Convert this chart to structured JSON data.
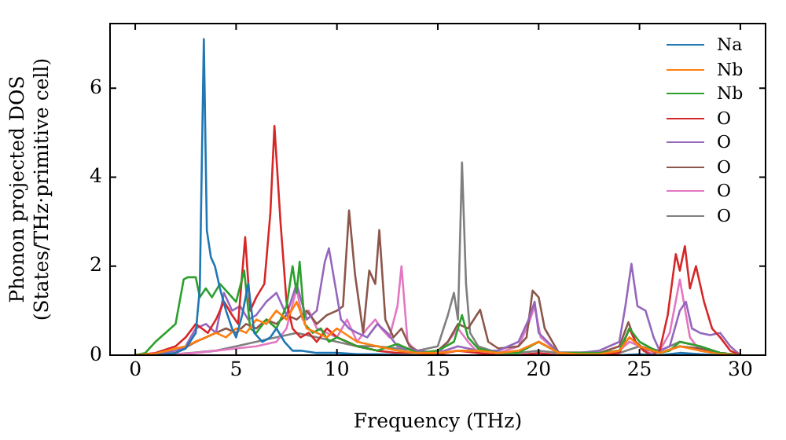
{
  "chart_data": {
    "type": "line",
    "xlabel": "Frequency (THz)",
    "ylabel": "Phonon projected DOS\n(States/THz·primitive cell)",
    "xlim": [
      -1.25,
      31.25
    ],
    "xticks": [
      0,
      5,
      10,
      15,
      20,
      25,
      30
    ],
    "ylim": [
      0,
      7.45
    ],
    "yticks": [
      0,
      2,
      4,
      6
    ],
    "grid": false,
    "legend": "top right",
    "marker": "none",
    "line_style": "solid",
    "series": [
      {
        "name": "Na",
        "color": "#1f77b4",
        "x": [
          1,
          2,
          2.5,
          3,
          3.2,
          3.4,
          3.55,
          3.75,
          3.95,
          4.2,
          4.5,
          4.8,
          5.0,
          5.3,
          5.6,
          5.9,
          6.3,
          6.7,
          7.0,
          7.4,
          7.8,
          8.2,
          9,
          10,
          11,
          12,
          14,
          16,
          18,
          20,
          22,
          24,
          25,
          26,
          27,
          28,
          29
        ],
        "values": [
          0,
          0.05,
          0.15,
          0.5,
          1.5,
          7.1,
          2.8,
          2.2,
          2.0,
          1.5,
          1.0,
          0.6,
          0.4,
          0.9,
          1.6,
          0.5,
          0.3,
          0.4,
          0.6,
          0.3,
          0.1,
          0.1,
          0.05,
          0.05,
          0.02,
          0.02,
          0,
          null,
          null,
          null,
          null,
          0,
          0.02,
          0,
          0.05,
          0.02,
          0
        ]
      },
      {
        "name": "Nb",
        "color": "#ff7f0e",
        "x": [
          0,
          1,
          2,
          2.5,
          3,
          3.5,
          4,
          4.5,
          5,
          5.5,
          6,
          6.5,
          7,
          7.5,
          8,
          8.5,
          9,
          9.5,
          10,
          11,
          12,
          13,
          14,
          15,
          16,
          17,
          18,
          19,
          20,
          21,
          22,
          23,
          24,
          24.5,
          25,
          26,
          27,
          27.5,
          28,
          29,
          30
        ],
        "values": [
          0,
          0.03,
          0.15,
          0.2,
          0.3,
          0.4,
          0.5,
          0.4,
          0.6,
          0.5,
          0.8,
          0.7,
          1.0,
          0.8,
          1.2,
          0.6,
          0.5,
          0.4,
          0.6,
          0.3,
          0.2,
          0.1,
          0.05,
          0.05,
          0.1,
          0.1,
          0.05,
          0.1,
          0.3,
          0.05,
          0.02,
          0.02,
          0.1,
          0.4,
          0.2,
          0.05,
          0.2,
          0.15,
          0.1,
          0.02,
          0
        ]
      },
      {
        "name": "Nb",
        "color": "#2ca02c",
        "x": [
          0,
          0.5,
          1,
          1.5,
          2,
          2.4,
          2.6,
          3.0,
          3.2,
          3.5,
          3.8,
          4.2,
          4.6,
          5.0,
          5.4,
          5.7,
          6.0,
          6.5,
          7.0,
          7.5,
          7.8,
          8.0,
          8.15,
          8.4,
          8.8,
          9.2,
          9.6,
          10,
          11,
          12,
          13,
          14,
          15,
          15.8,
          16.2,
          16.5,
          17,
          18,
          19,
          20,
          21,
          22,
          23,
          24,
          24.5,
          25,
          26,
          26.5,
          27,
          27.5,
          28,
          29,
          30
        ],
        "values": [
          0,
          0.05,
          0.3,
          0.5,
          0.7,
          1.7,
          1.75,
          1.75,
          1.3,
          1.5,
          1.3,
          1.6,
          1.4,
          1.2,
          1.9,
          0.6,
          0.5,
          0.8,
          0.6,
          1.1,
          2.0,
          1.4,
          2.1,
          0.7,
          0.5,
          0.6,
          0.3,
          0.4,
          0.2,
          0.1,
          0.25,
          0.05,
          0.1,
          0.3,
          0.9,
          0.4,
          0.15,
          0.05,
          0.05,
          0.3,
          0.05,
          0.05,
          0.05,
          0.1,
          0.6,
          0.3,
          0.05,
          0.1,
          0.3,
          0.25,
          0.2,
          0.05,
          0
        ]
      },
      {
        "name": "O",
        "color": "#d62728",
        "x": [
          0,
          1,
          2,
          2.5,
          3,
          3.3,
          3.6,
          4,
          4.4,
          4.8,
          5.1,
          5.45,
          5.7,
          6.0,
          6.4,
          6.7,
          6.9,
          7.2,
          7.5,
          7.8,
          8.2,
          8.6,
          9,
          9.5,
          10,
          10.5,
          11,
          12,
          13,
          14,
          15,
          16,
          17,
          18,
          19,
          20,
          21,
          22,
          23,
          24,
          24.5,
          24.8,
          25.2,
          25.6,
          26,
          26.4,
          26.8,
          27.0,
          27.25,
          27.5,
          27.8,
          28.2,
          28.6,
          29,
          29.5,
          30
        ],
        "values": [
          0,
          0.05,
          0.2,
          0.4,
          0.7,
          0.6,
          0.5,
          0.8,
          1.2,
          0.9,
          0.7,
          2.65,
          1.0,
          1.3,
          1.6,
          3.2,
          5.15,
          3.0,
          1.2,
          0.6,
          0.4,
          0.5,
          0.3,
          0.6,
          0.4,
          0.3,
          0.2,
          0.1,
          0.05,
          0.05,
          0.02,
          0.1,
          0.05,
          0,
          0,
          0.05,
          0,
          0,
          0,
          0.05,
          0.6,
          0.3,
          0.1,
          0,
          0.1,
          0.9,
          2.27,
          1.9,
          2.45,
          1.5,
          2.0,
          1.2,
          0.6,
          0.4,
          0.1,
          0
        ]
      },
      {
        "name": "O",
        "color": "#9467bd",
        "x": [
          0,
          1,
          2,
          2.5,
          3,
          3.5,
          4,
          4.4,
          4.8,
          5.2,
          5.6,
          6.0,
          6.5,
          7.0,
          7.5,
          8.0,
          8.5,
          9.0,
          9.4,
          9.6,
          9.9,
          10.2,
          10.6,
          11,
          11.5,
          12,
          12.5,
          13,
          14,
          15,
          16,
          17,
          18,
          19,
          19.5,
          19.8,
          20,
          21,
          22,
          23,
          24,
          24.3,
          24.6,
          24.9,
          25.3,
          25.7,
          26,
          26.5,
          27,
          27.3,
          27.6,
          28,
          28.5,
          29,
          29.5,
          30
        ],
        "values": [
          0,
          0.02,
          0.1,
          0.2,
          0.6,
          0.7,
          0.5,
          1.4,
          1.0,
          1.1,
          0.8,
          0.9,
          1.2,
          1.4,
          0.9,
          1.6,
          0.8,
          1.0,
          2.1,
          2.4,
          1.6,
          0.8,
          0.6,
          0.5,
          0.4,
          0.7,
          0.5,
          0.2,
          0.1,
          0.05,
          0.2,
          0.1,
          0.1,
          0.3,
          0.8,
          1.2,
          0.5,
          0.05,
          0.05,
          0.1,
          0.3,
          1.1,
          2.05,
          1.1,
          1.0,
          0.4,
          0.1,
          0.2,
          1.0,
          1.2,
          0.6,
          0.5,
          0.45,
          0.5,
          0.2,
          0
        ]
      },
      {
        "name": "O",
        "color": "#8c564b",
        "x": [
          0,
          1,
          2,
          3,
          3.5,
          4,
          4.5,
          5,
          5.5,
          6,
          6.5,
          7,
          7.5,
          8,
          8.5,
          9,
          9.5,
          10,
          10.3,
          10.6,
          10.9,
          11.3,
          11.6,
          11.9,
          12.1,
          12.4,
          12.8,
          13.2,
          13.6,
          14,
          14.5,
          15,
          15.5,
          16,
          16.5,
          17.1,
          17.5,
          18,
          19,
          19.4,
          19.7,
          20,
          20.3,
          21,
          22,
          23,
          24,
          24.45,
          24.8,
          25.2,
          26,
          27,
          28,
          29,
          30
        ],
        "values": [
          0,
          0,
          0.05,
          0.3,
          0.4,
          0.5,
          0.6,
          0.5,
          0.7,
          0.6,
          0.8,
          0.7,
          0.9,
          0.8,
          1.0,
          0.7,
          0.9,
          1.0,
          1.1,
          3.25,
          1.8,
          0.5,
          1.9,
          1.6,
          2.81,
          0.8,
          0.4,
          0.6,
          0.2,
          0.1,
          0.05,
          0.1,
          0.3,
          0.7,
          0.6,
          1.02,
          0.3,
          0.15,
          0.2,
          0.4,
          1.45,
          1.3,
          0.6,
          0.05,
          0.05,
          0.05,
          0.2,
          0.74,
          0.3,
          0.15,
          0.05,
          0.2,
          0.15,
          0.05,
          0
        ]
      },
      {
        "name": "O",
        "color": "#e377c2",
        "x": [
          0,
          2,
          3,
          4,
          5,
          6,
          7,
          7.5,
          8,
          8.3,
          8.6,
          9,
          9.5,
          10,
          10.5,
          11,
          11.5,
          11.9,
          12.2,
          12.6,
          13.0,
          13.2,
          13.5,
          14,
          15,
          15.5,
          16,
          16.5,
          17,
          18,
          19,
          19.5,
          19.8,
          20.1,
          21,
          22,
          23,
          24,
          24.5,
          25,
          25.5,
          26,
          26.5,
          27,
          27.5,
          28,
          29,
          30
        ],
        "values": [
          0,
          0.02,
          0.05,
          0.1,
          0.15,
          0.2,
          0.3,
          0.6,
          1.5,
          0.8,
          1.0,
          0.6,
          0.5,
          0.4,
          0.8,
          0.3,
          0.6,
          0.8,
          0.6,
          0.4,
          1.1,
          2.0,
          0.3,
          0.05,
          0.02,
          0.3,
          0.6,
          0.3,
          0.05,
          0.05,
          0.2,
          0.7,
          1.1,
          0.4,
          0.05,
          0.05,
          0.05,
          0.1,
          0.3,
          0.2,
          0.05,
          0.1,
          0.5,
          1.7,
          0.4,
          0.1,
          0.05,
          0
        ]
      },
      {
        "name": "O",
        "color": "#7f7f7f",
        "x": [
          0,
          2,
          4,
          5,
          6,
          7,
          8,
          9,
          10,
          11,
          12,
          13,
          14,
          15,
          15.5,
          15.8,
          16.0,
          16.2,
          16.4,
          16.6,
          17,
          18,
          19,
          20,
          21,
          22,
          23,
          24,
          25,
          26,
          27,
          28,
          29,
          30
        ],
        "values": [
          0,
          0.02,
          0.1,
          0.2,
          0.3,
          0.4,
          0.5,
          0.4,
          0.3,
          0.2,
          0.2,
          0.15,
          0.1,
          0.2,
          0.9,
          1.4,
          0.8,
          4.33,
          1.6,
          0.5,
          0.2,
          0.05,
          0.05,
          0.1,
          0.05,
          0.05,
          0.05,
          0.05,
          0.2,
          0.1,
          0.3,
          0.2,
          0.05,
          0
        ]
      }
    ]
  }
}
